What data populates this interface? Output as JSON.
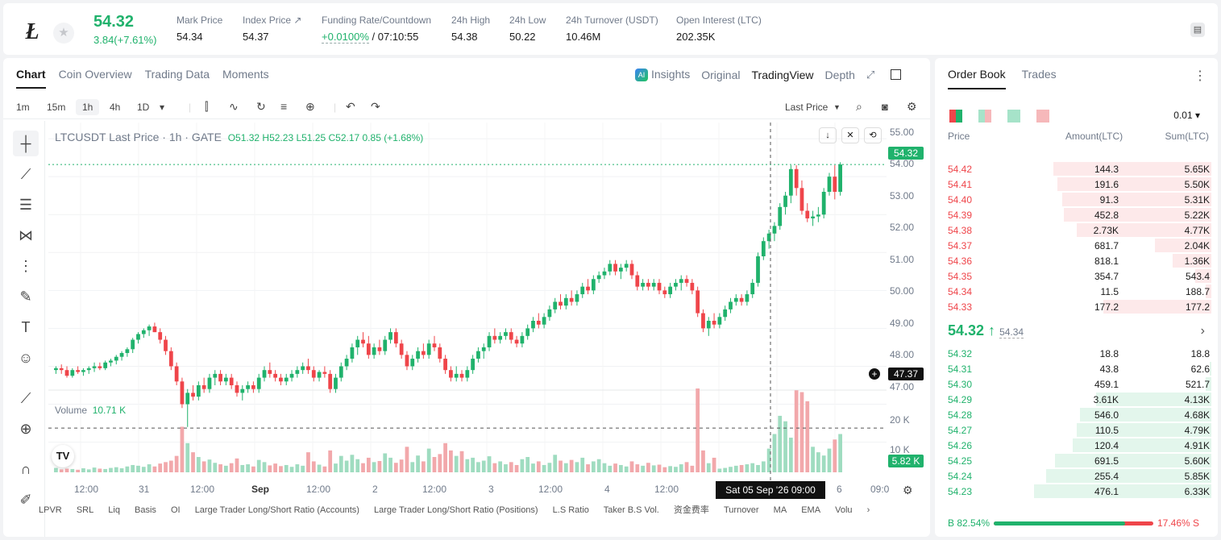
{
  "header": {
    "logo": "Ł",
    "price": "54.32",
    "change": "3.84(+7.61%)",
    "stats": [
      {
        "label": "Mark Price",
        "value": "54.34"
      },
      {
        "label": "Index Price ↗",
        "value": "54.37"
      },
      {
        "label": "Funding Rate/Countdown",
        "value": "+0.0100%",
        "value2": " / 07:10:55"
      },
      {
        "label": "24h High",
        "value": "54.38"
      },
      {
        "label": "24h Low",
        "value": "50.22"
      },
      {
        "label": "24h Turnover (USDT)",
        "value": "10.46M"
      },
      {
        "label": "Open Interest (LTC)",
        "value": "202.35K"
      }
    ]
  },
  "chart_tabs": [
    "Chart",
    "Coin Overview",
    "Trading Data",
    "Moments"
  ],
  "view_tabs": {
    "insights": "Insights",
    "original": "Original",
    "tradingview": "TradingView",
    "depth": "Depth"
  },
  "toolbar": {
    "intervals": [
      "1m",
      "15m",
      "1h",
      "4h",
      "1D"
    ],
    "price_type": "Last Price"
  },
  "legend": {
    "symbol": "LTCUSDT Last Price · 1h · GATE",
    "ohlc": "O51.32  H52.23  L51.25  C52.17  0.85 (+1.68%)"
  },
  "volume_legend": {
    "label": "Volume",
    "value": "10.71 K"
  },
  "price_axis": [
    "55.00",
    "54.00",
    "53.00",
    "52.00",
    "51.00",
    "50.00",
    "49.00",
    "48.00",
    "47.00"
  ],
  "volume_axis": [
    "20 K",
    "10 K"
  ],
  "labels": {
    "last_price": "54.32",
    "crosshair_price": "47.37",
    "volume_last": "5.82 K",
    "crosshair_date": "Sat 05 Sep '26   09:00"
  },
  "x_axis": [
    "12:00",
    "31",
    "12:00",
    "Sep",
    "12:00",
    "2",
    "12:00",
    "3",
    "12:00",
    "4",
    "12:00",
    "6",
    "09:0"
  ],
  "indicators": [
    "LPVR",
    "SRL",
    "Liq",
    "Basis",
    "OI",
    "Large Trader Long/Short Ratio (Accounts)",
    "Large Trader Long/Short Ratio (Positions)",
    "L.S Ratio",
    "Taker B.S Vol.",
    "资金费率",
    "Turnover",
    "MA",
    "EMA",
    "Volu"
  ],
  "colors": {
    "up": "#20b26c",
    "down": "#ef454a"
  },
  "chart_data": {
    "type": "candlestick",
    "symbol": "LTCUSDT",
    "interval": "1h",
    "ylim": [
      46.8,
      55.3
    ],
    "ohlc": [
      [
        48.9,
        49.0,
        48.8,
        48.95
      ],
      [
        48.95,
        49.05,
        48.8,
        48.9
      ],
      [
        48.9,
        49.0,
        48.7,
        48.75
      ],
      [
        48.75,
        48.95,
        48.7,
        48.9
      ],
      [
        48.9,
        49.0,
        48.8,
        48.85
      ],
      [
        48.85,
        48.95,
        48.75,
        48.9
      ],
      [
        48.9,
        49.0,
        48.8,
        48.95
      ],
      [
        48.95,
        49.1,
        48.85,
        49.0
      ],
      [
        49.0,
        49.1,
        48.9,
        48.95
      ],
      [
        48.95,
        49.15,
        48.9,
        49.1
      ],
      [
        49.1,
        49.2,
        49.0,
        49.15
      ],
      [
        49.15,
        49.3,
        49.05,
        49.25
      ],
      [
        49.25,
        49.4,
        49.15,
        49.35
      ],
      [
        49.35,
        49.5,
        49.25,
        49.45
      ],
      [
        49.45,
        49.75,
        49.35,
        49.7
      ],
      [
        49.7,
        49.9,
        49.6,
        49.85
      ],
      [
        49.85,
        50.0,
        49.75,
        49.95
      ],
      [
        49.95,
        50.1,
        49.8,
        50.05
      ],
      [
        50.05,
        50.15,
        49.9,
        49.9
      ],
      [
        49.9,
        50.0,
        49.6,
        49.7
      ],
      [
        49.7,
        49.8,
        49.3,
        49.4
      ],
      [
        49.4,
        49.5,
        48.9,
        49.0
      ],
      [
        49.0,
        49.1,
        48.5,
        48.6
      ],
      [
        48.6,
        48.7,
        47.9,
        48.0
      ],
      [
        48.0,
        48.4,
        47.4,
        48.3
      ],
      [
        48.3,
        48.5,
        48.1,
        48.2
      ],
      [
        48.2,
        48.6,
        48.1,
        48.5
      ],
      [
        48.5,
        48.7,
        48.3,
        48.4
      ],
      [
        48.4,
        48.8,
        48.3,
        48.7
      ],
      [
        48.7,
        48.9,
        48.5,
        48.8
      ],
      [
        48.8,
        48.9,
        48.5,
        48.6
      ],
      [
        48.6,
        48.8,
        48.5,
        48.7
      ],
      [
        48.7,
        48.8,
        48.4,
        48.5
      ],
      [
        48.5,
        48.6,
        48.2,
        48.3
      ],
      [
        48.3,
        48.5,
        48.1,
        48.4
      ],
      [
        48.4,
        48.6,
        48.3,
        48.5
      ],
      [
        48.5,
        48.6,
        48.3,
        48.4
      ],
      [
        48.4,
        48.8,
        48.3,
        48.7
      ],
      [
        48.7,
        49.0,
        48.6,
        48.9
      ],
      [
        48.9,
        49.1,
        48.7,
        48.8
      ],
      [
        48.8,
        48.9,
        48.6,
        48.7
      ],
      [
        48.7,
        48.8,
        48.5,
        48.6
      ],
      [
        48.6,
        48.8,
        48.5,
        48.7
      ],
      [
        48.7,
        48.9,
        48.6,
        48.8
      ],
      [
        48.8,
        49.0,
        48.7,
        48.9
      ],
      [
        48.9,
        49.1,
        48.8,
        49.0
      ],
      [
        49.0,
        49.2,
        48.8,
        48.9
      ],
      [
        48.9,
        49.0,
        48.6,
        48.7
      ],
      [
        48.7,
        48.9,
        48.6,
        48.85
      ],
      [
        48.85,
        49.0,
        48.7,
        48.8
      ],
      [
        48.8,
        48.9,
        48.3,
        48.4
      ],
      [
        48.4,
        48.8,
        48.3,
        48.7
      ],
      [
        48.7,
        49.1,
        48.6,
        49.0
      ],
      [
        49.0,
        49.3,
        48.9,
        49.2
      ],
      [
        49.2,
        49.6,
        49.1,
        49.5
      ],
      [
        49.5,
        49.8,
        49.3,
        49.7
      ],
      [
        49.7,
        49.9,
        49.5,
        49.6
      ],
      [
        49.6,
        49.8,
        49.2,
        49.3
      ],
      [
        49.3,
        49.6,
        49.2,
        49.5
      ],
      [
        49.5,
        49.7,
        49.3,
        49.4
      ],
      [
        49.4,
        49.8,
        49.3,
        49.7
      ],
      [
        49.7,
        50.0,
        49.6,
        49.9
      ],
      [
        49.9,
        50.0,
        49.5,
        49.6
      ],
      [
        49.6,
        49.7,
        49.2,
        49.3
      ],
      [
        49.3,
        49.4,
        48.9,
        49.0
      ],
      [
        49.0,
        49.3,
        48.9,
        49.2
      ],
      [
        49.2,
        49.5,
        49.1,
        49.4
      ],
      [
        49.4,
        49.6,
        49.2,
        49.3
      ],
      [
        49.3,
        49.7,
        49.2,
        49.6
      ],
      [
        49.6,
        49.8,
        49.4,
        49.5
      ],
      [
        49.5,
        49.6,
        49.1,
        49.2
      ],
      [
        49.2,
        49.3,
        48.8,
        48.9
      ],
      [
        48.9,
        49.0,
        48.6,
        48.7
      ],
      [
        48.7,
        49.0,
        48.6,
        48.8
      ],
      [
        48.8,
        48.9,
        48.6,
        48.7
      ],
      [
        48.7,
        49.0,
        48.6,
        48.9
      ],
      [
        48.9,
        49.3,
        48.8,
        49.2
      ],
      [
        49.2,
        49.5,
        49.1,
        49.4
      ],
      [
        49.4,
        49.6,
        49.2,
        49.5
      ],
      [
        49.5,
        49.9,
        49.4,
        49.8
      ],
      [
        49.8,
        50.0,
        49.6,
        49.7
      ],
      [
        49.7,
        49.9,
        49.6,
        49.8
      ],
      [
        49.8,
        50.0,
        49.7,
        49.9
      ],
      [
        49.9,
        50.0,
        49.6,
        49.7
      ],
      [
        49.7,
        49.8,
        49.5,
        49.6
      ],
      [
        49.6,
        49.9,
        49.5,
        49.8
      ],
      [
        49.8,
        50.1,
        49.7,
        50.0
      ],
      [
        50.0,
        50.3,
        49.9,
        50.2
      ],
      [
        50.2,
        50.4,
        50.0,
        50.1
      ],
      [
        50.1,
        50.4,
        50.0,
        50.3
      ],
      [
        50.3,
        50.6,
        50.2,
        50.5
      ],
      [
        50.5,
        50.8,
        50.4,
        50.7
      ],
      [
        50.7,
        50.9,
        50.5,
        50.6
      ],
      [
        50.6,
        50.9,
        50.5,
        50.8
      ],
      [
        50.8,
        51.0,
        50.6,
        50.7
      ],
      [
        50.7,
        51.0,
        50.6,
        50.9
      ],
      [
        50.9,
        51.2,
        50.8,
        51.1
      ],
      [
        51.1,
        51.3,
        50.9,
        51.0
      ],
      [
        51.0,
        51.4,
        50.9,
        51.3
      ],
      [
        51.3,
        51.5,
        51.2,
        51.4
      ],
      [
        51.4,
        51.6,
        51.3,
        51.5
      ],
      [
        51.5,
        51.8,
        51.4,
        51.7
      ],
      [
        51.7,
        51.8,
        51.4,
        51.5
      ],
      [
        51.5,
        51.7,
        51.3,
        51.6
      ],
      [
        51.6,
        51.8,
        51.5,
        51.7
      ],
      [
        51.7,
        51.8,
        51.3,
        51.4
      ],
      [
        51.4,
        51.5,
        51.0,
        51.1
      ],
      [
        51.1,
        51.3,
        51.0,
        51.2
      ],
      [
        51.2,
        51.3,
        51.0,
        51.1
      ],
      [
        51.1,
        51.3,
        51.0,
        51.2
      ],
      [
        51.2,
        51.3,
        50.9,
        51.0
      ],
      [
        51.0,
        51.1,
        50.8,
        50.9
      ],
      [
        50.9,
        51.2,
        50.8,
        51.1
      ],
      [
        51.1,
        51.3,
        51.0,
        51.2
      ],
      [
        51.2,
        51.4,
        51.0,
        51.3
      ],
      [
        51.3,
        51.4,
        51.1,
        51.2
      ],
      [
        51.2,
        51.3,
        50.9,
        51.0
      ],
      [
        51.0,
        51.1,
        50.3,
        50.4
      ],
      [
        50.4,
        50.5,
        49.9,
        50.0
      ],
      [
        50.0,
        50.3,
        49.8,
        50.2
      ],
      [
        50.2,
        50.4,
        50.0,
        50.1
      ],
      [
        50.1,
        50.4,
        50.0,
        50.3
      ],
      [
        50.3,
        50.6,
        50.2,
        50.5
      ],
      [
        50.5,
        50.8,
        50.4,
        50.7
      ],
      [
        50.7,
        50.9,
        50.6,
        50.8
      ],
      [
        50.8,
        50.9,
        50.6,
        50.7
      ],
      [
        50.7,
        51.0,
        50.6,
        50.9
      ],
      [
        50.9,
        51.3,
        50.8,
        51.2
      ],
      [
        51.2,
        52.0,
        51.1,
        51.9
      ],
      [
        51.9,
        52.4,
        51.8,
        52.3
      ],
      [
        52.3,
        52.6,
        52.1,
        52.5
      ],
      [
        52.5,
        52.8,
        52.3,
        52.7
      ],
      [
        52.7,
        53.3,
        52.6,
        53.2
      ],
      [
        53.2,
        53.6,
        53.0,
        53.5
      ],
      [
        53.5,
        54.3,
        53.3,
        54.2
      ],
      [
        54.2,
        54.3,
        53.5,
        53.7
      ],
      [
        53.7,
        53.9,
        53.0,
        53.1
      ],
      [
        53.1,
        53.3,
        52.8,
        52.9
      ],
      [
        52.9,
        53.1,
        52.7,
        52.95
      ],
      [
        52.95,
        53.2,
        52.8,
        53.0
      ],
      [
        53.0,
        53.7,
        52.9,
        53.6
      ],
      [
        53.6,
        54.1,
        53.5,
        54.0
      ],
      [
        54.0,
        54.3,
        53.4,
        53.6
      ],
      [
        53.6,
        54.38,
        53.5,
        54.32
      ]
    ],
    "volume": [
      1.2,
      0.8,
      1.0,
      0.9,
      0.7,
      1.1,
      0.8,
      1.3,
      1.0,
      0.9,
      1.2,
      1.4,
      1.1,
      1.6,
      2.0,
      1.8,
      1.5,
      2.2,
      1.6,
      2.4,
      2.8,
      3.2,
      4.5,
      12.5,
      8.0,
      5.5,
      4.2,
      3.0,
      3.5,
      2.6,
      2.2,
      1.8,
      2.5,
      3.8,
      2.0,
      2.2,
      1.6,
      3.4,
      2.8,
      1.9,
      2.4,
      1.7,
      2.0,
      1.5,
      2.2,
      1.8,
      5.5,
      3.0,
      2.1,
      1.6,
      6.0,
      2.4,
      4.5,
      3.2,
      4.8,
      3.6,
      2.5,
      4.0,
      2.8,
      3.1,
      5.2,
      4.0,
      2.6,
      3.5,
      7.0,
      2.8,
      4.6,
      3.0,
      6.5,
      4.2,
      5.0,
      8.0,
      6.0,
      4.5,
      5.8,
      3.6,
      4.0,
      2.8,
      3.2,
      4.4,
      2.5,
      3.0,
      2.2,
      2.8,
      2.0,
      3.6,
      4.2,
      2.4,
      3.0,
      2.0,
      2.6,
      4.8,
      3.2,
      2.5,
      3.4,
      2.8,
      4.0,
      2.2,
      3.0,
      3.6,
      2.5,
      1.8,
      2.4,
      2.0,
      1.6,
      3.0,
      2.2,
      1.8,
      2.6,
      1.9,
      2.1,
      1.4,
      1.7,
      1.5,
      2.2,
      2.8,
      1.8,
      23.0,
      6.0,
      2.5,
      4.0,
      1.0,
      1.2,
      1.5,
      1.8,
      2.0,
      2.2,
      2.5,
      2.0,
      3.0,
      6.5,
      10.5,
      15.5,
      14.0,
      9.5,
      22.5,
      22.0,
      19.5,
      7.0,
      5.5,
      4.6,
      6.5,
      9.0,
      10.5,
      10.5,
      5.8
    ],
    "ohlc_order": [
      "open",
      "high",
      "low",
      "close"
    ]
  },
  "orderbook": {
    "tabs": [
      "Order Book",
      "Trades"
    ],
    "precision": "0.01",
    "headers": [
      "Price",
      "Amount(LTC)",
      "Sum(LTC)"
    ],
    "asks": [
      [
        "54.42",
        "144.3",
        "5.65K"
      ],
      [
        "54.41",
        "191.6",
        "5.50K"
      ],
      [
        "54.40",
        "91.3",
        "5.31K"
      ],
      [
        "54.39",
        "452.8",
        "5.22K"
      ],
      [
        "54.38",
        "2.73K",
        "4.77K"
      ],
      [
        "54.37",
        "681.7",
        "2.04K"
      ],
      [
        "54.36",
        "818.1",
        "1.36K"
      ],
      [
        "54.35",
        "354.7",
        "543.4"
      ],
      [
        "54.34",
        "11.5",
        "188.7"
      ],
      [
        "54.33",
        "177.2",
        "177.2"
      ]
    ],
    "ask_depth": [
      0.89,
      0.87,
      0.84,
      0.83,
      0.76,
      0.32,
      0.22,
      0.09,
      0.03,
      0.61
    ],
    "last": "54.32",
    "mark": "54.34",
    "bids": [
      [
        "54.32",
        "18.8",
        "18.8"
      ],
      [
        "54.31",
        "43.8",
        "62.6"
      ],
      [
        "54.30",
        "459.1",
        "521.7"
      ],
      [
        "54.29",
        "3.61K",
        "4.13K"
      ],
      [
        "54.28",
        "546.0",
        "4.68K"
      ],
      [
        "54.27",
        "110.5",
        "4.79K"
      ],
      [
        "54.26",
        "120.4",
        "4.91K"
      ],
      [
        "54.25",
        "691.5",
        "5.60K"
      ],
      [
        "54.24",
        "255.4",
        "5.85K"
      ],
      [
        "54.23",
        "476.1",
        "6.33K"
      ]
    ],
    "bid_depth": [
      0.0,
      0.01,
      0.03,
      0.65,
      0.74,
      0.76,
      0.78,
      0.88,
      0.93,
      1.0
    ],
    "buy_ratio": "B 82.54%",
    "sell_ratio": "17.46% S",
    "buy_fraction": 0.8254
  }
}
